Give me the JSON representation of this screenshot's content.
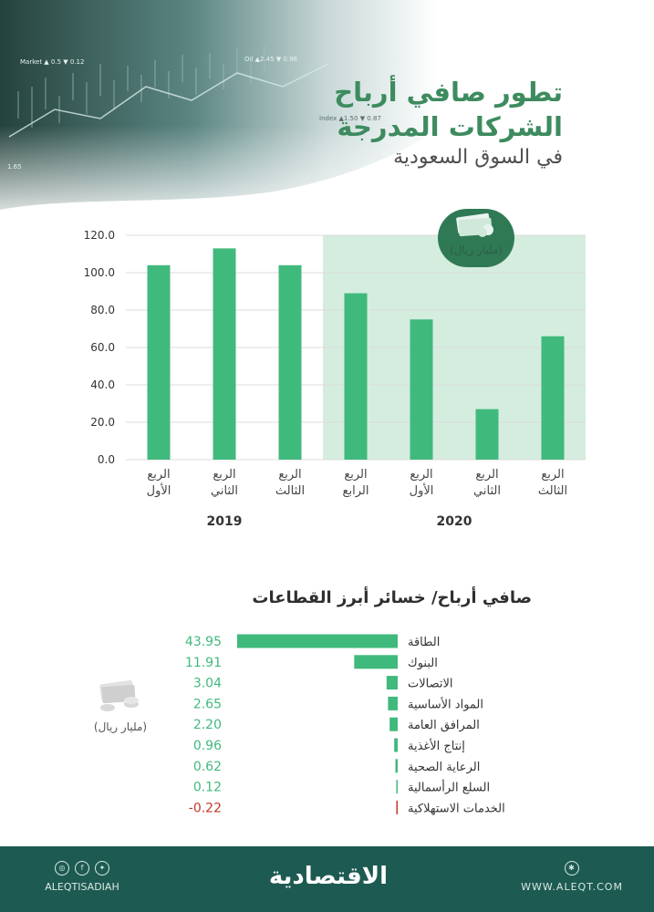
{
  "header": {
    "title_line1": "تطور صافي أرباح",
    "title_line2": "الشركات المدرجة",
    "title_line3": "في السوق السعودية",
    "hero_ticker_1": "Market ▲ 0.5  ▼ 0.12",
    "hero_ticker_2": "Oil ▲2.45 ▼ 0.98",
    "hero_ticker_3": "Index ▲1.50 ▼ 0.87",
    "hero_ticker_4": "1.65"
  },
  "chart_data": [
    {
      "type": "bar",
      "unit": "(مليار ريال)",
      "categories": [
        "الربع الأول",
        "الربع الثاني",
        "الربع الثالث",
        "الربع الرابع",
        "الربع الأول",
        "الربع الثاني",
        "الربع الثالث"
      ],
      "category_lines": [
        [
          "الربع",
          "الأول"
        ],
        [
          "الربع",
          "الثاني"
        ],
        [
          "الربع",
          "الثالث"
        ],
        [
          "الربع",
          "الرابع"
        ],
        [
          "الربع",
          "الأول"
        ],
        [
          "الربع",
          "الثاني"
        ],
        [
          "الربع",
          "الثالث"
        ]
      ],
      "values": [
        104,
        113,
        104,
        89,
        75,
        27,
        66
      ],
      "years": [
        {
          "label": "2019",
          "from": 0,
          "to": 2
        },
        {
          "label": "2020",
          "from": 3,
          "to": 6
        }
      ],
      "ylim": [
        0,
        120
      ],
      "yticks": [
        "0.0",
        "20.0",
        "40.0",
        "60.0",
        "80.0",
        "100.0",
        "120.0"
      ],
      "highlight_from": 3,
      "colors": {
        "bar": "#40b97d",
        "highlight": "#d4eddf"
      }
    },
    {
      "type": "bar",
      "orientation": "horizontal",
      "title": "صافي أرباح/ خسائر أبرز القطاعات",
      "unit": "(مليار ريال)",
      "categories": [
        "الطاقة",
        "البنوك",
        "الاتصالات",
        "المواد الأساسية",
        "المرافق العامة",
        "إنتاج الأغذية",
        "الرعاية الصحية",
        "السلع الرأسمالية",
        "الخدمات الاستهلاكية"
      ],
      "values": [
        43.95,
        11.91,
        3.04,
        2.65,
        2.2,
        0.96,
        0.62,
        0.12,
        -0.22
      ],
      "value_labels": [
        "43.95",
        "11.91",
        "3.04",
        "2.65",
        "2.20",
        "0.96",
        "0.62",
        "0.12",
        "-0.22"
      ],
      "colors": {
        "positive": "#40b97d",
        "negative": "#c0392b"
      }
    }
  ],
  "footer": {
    "logo": "الاقتصادية",
    "handle": "ALEQTISADIAH",
    "website": "WWW.ALEQT.COM",
    "social_icons": [
      "instagram-icon",
      "facebook-icon",
      "twitter-icon"
    ],
    "site_icon": "globe-icon",
    "background": "#1d5b52"
  }
}
